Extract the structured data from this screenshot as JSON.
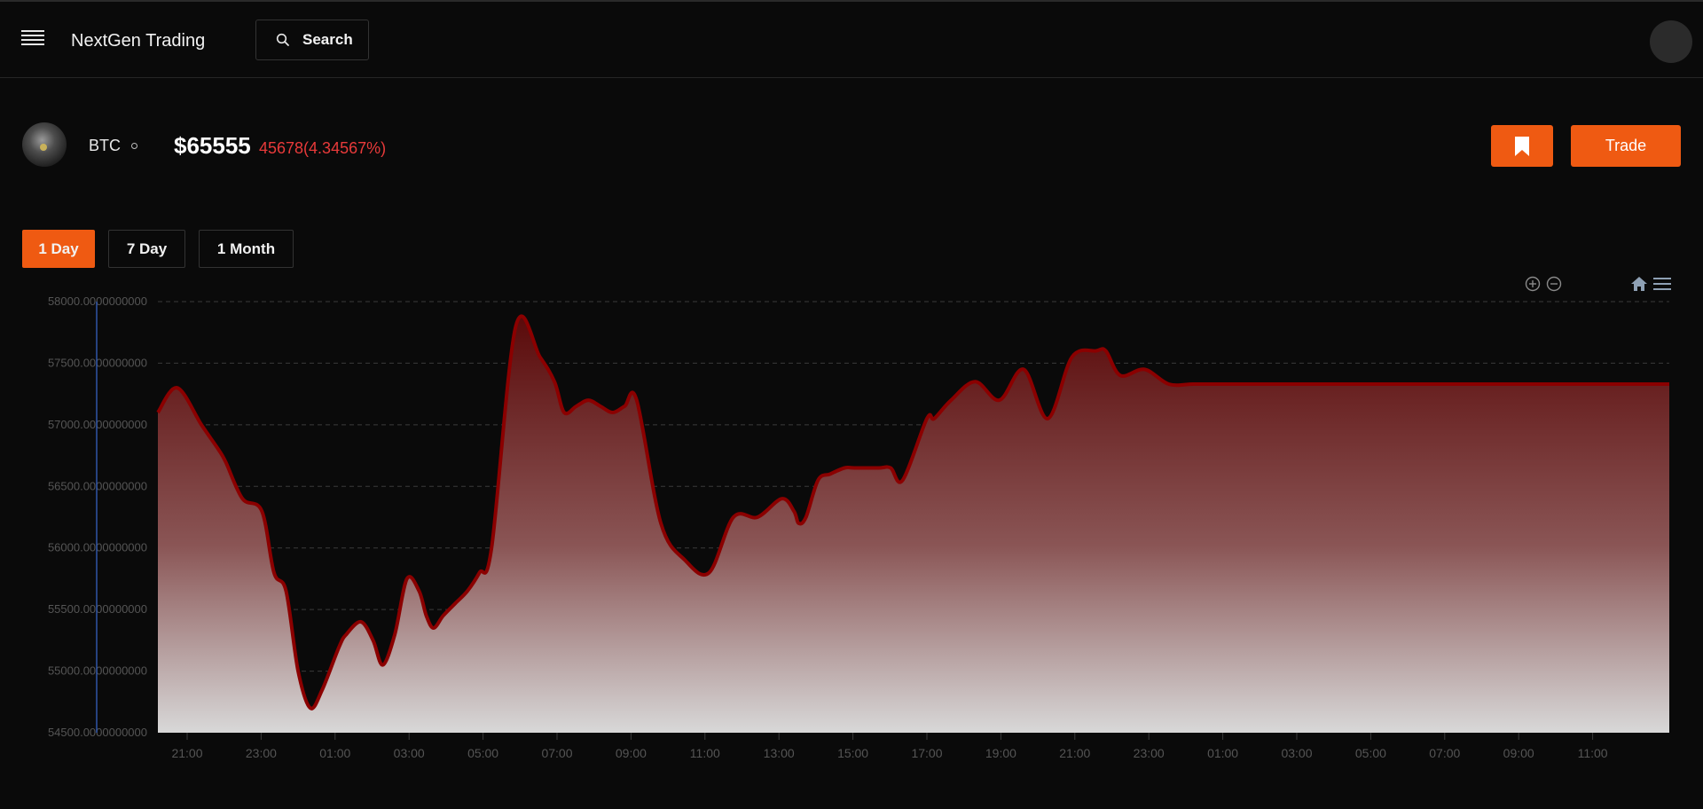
{
  "navbar": {
    "brand": "NextGen Trading",
    "search_label": "Search"
  },
  "coin": {
    "symbol": "BTC",
    "price": "$65555",
    "change": "45678(4.34567%)"
  },
  "actions": {
    "trade_label": "Trade"
  },
  "ranges": [
    {
      "label": "1 Day",
      "active": true
    },
    {
      "label": "7 Day",
      "active": false
    },
    {
      "label": "1 Month",
      "active": false
    }
  ],
  "colors": {
    "accent": "#ef5a12",
    "negative": "#e83a3a",
    "line": "#8b0000",
    "background": "#0a0a0a"
  },
  "icons": [
    "menu-icon",
    "search-icon",
    "bookmark-icon",
    "zoom-in-icon",
    "zoom-out-icon",
    "home-icon",
    "chart-menu-icon"
  ],
  "chart_data": {
    "type": "area",
    "ylim": [
      54500,
      58000
    ],
    "yticks": [
      "58000.0000000000",
      "57500.0000000000",
      "57000.0000000000",
      "56500.0000000000",
      "56000.0000000000",
      "55500.0000000000",
      "55000.0000000000",
      "54500.0000000000"
    ],
    "xticks": [
      "21:00",
      "23:00",
      "01:00",
      "03:00",
      "05:00",
      "07:00",
      "09:00",
      "11:00",
      "13:00",
      "15:00",
      "17:00",
      "19:00",
      "21:00",
      "23:00",
      "01:00",
      "03:00",
      "05:00",
      "07:00",
      "09:00",
      "11:00"
    ],
    "grid": true,
    "series": [
      {
        "x": [
          20.2,
          21,
          22,
          22.7,
          23,
          23.7,
          24.5,
          25,
          25.5,
          26,
          26.5,
          27,
          27.7,
          28,
          28.6,
          29.1,
          29.5,
          30,
          30.5,
          31,
          31.3,
          31.6,
          32,
          32.5,
          33,
          33.5,
          34,
          35,
          36,
          36.6,
          37,
          37.5,
          38,
          38.5,
          39,
          39.5,
          40,
          41,
          42,
          43,
          44,
          45,
          46,
          46.5,
          46.7,
          47,
          47.5,
          48,
          48.6,
          49,
          50,
          50.5,
          51,
          52,
          52.3,
          53,
          54,
          55,
          56,
          57,
          58,
          59,
          59.4,
          60,
          61,
          62,
          63,
          64,
          64.8,
          65,
          65.5,
          66,
          67,
          68,
          68.4,
          68.7,
          69,
          69.2,
          70,
          71,
          72,
          73,
          74,
          74.7,
          75.5,
          76,
          77,
          78.3,
          79,
          80,
          81,
          81.7,
          82,
          82.7
        ],
        "y": [
          57100,
          57300,
          57000,
          56800,
          56700,
          56400,
          56300,
          55800,
          55650,
          55000,
          54700,
          54850,
          55200,
          55300,
          55400,
          55250,
          55050,
          55300,
          55750,
          55650,
          55450,
          55350,
          55450,
          55550,
          55650,
          55800,
          56000,
          57800,
          57550,
          57350,
          57100,
          57150,
          57200,
          57150,
          57100,
          57150,
          57200,
          56200,
          55900,
          55800,
          56250,
          56250,
          56400,
          56300,
          56200,
          56250,
          56550,
          56600,
          56650,
          56650,
          56650,
          56650,
          56550,
          57050,
          57050,
          57200,
          57350,
          57200,
          57450,
          57050,
          57550,
          57600,
          57600,
          57400,
          57450,
          57330,
          57330,
          57330,
          57330,
          57330,
          57330,
          57330,
          57330,
          57330,
          57330,
          57330,
          57330,
          57330,
          57330,
          57330,
          57330,
          57330,
          57330,
          57330,
          57330,
          57330,
          57330,
          57330,
          57330,
          57330,
          57330,
          57330,
          57330,
          57330
        ]
      }
    ]
  }
}
